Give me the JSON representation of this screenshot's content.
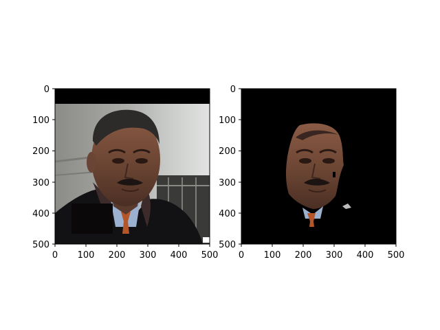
{
  "figure": {
    "background": "#ffffff",
    "axis_color": "#000000"
  },
  "panels": [
    {
      "name": "left-panel",
      "description_kind": "photo",
      "x_ticks": [
        "0",
        "100",
        "200",
        "300",
        "400",
        "500"
      ],
      "y_ticks": [
        "0",
        "100",
        "200",
        "300",
        "400",
        "500"
      ]
    },
    {
      "name": "right-panel",
      "description_kind": "masked-photo",
      "x_ticks": [
        "0",
        "100",
        "200",
        "300",
        "400",
        "500"
      ],
      "y_ticks": [
        "0",
        "100",
        "200",
        "300",
        "400",
        "500"
      ]
    }
  ]
}
